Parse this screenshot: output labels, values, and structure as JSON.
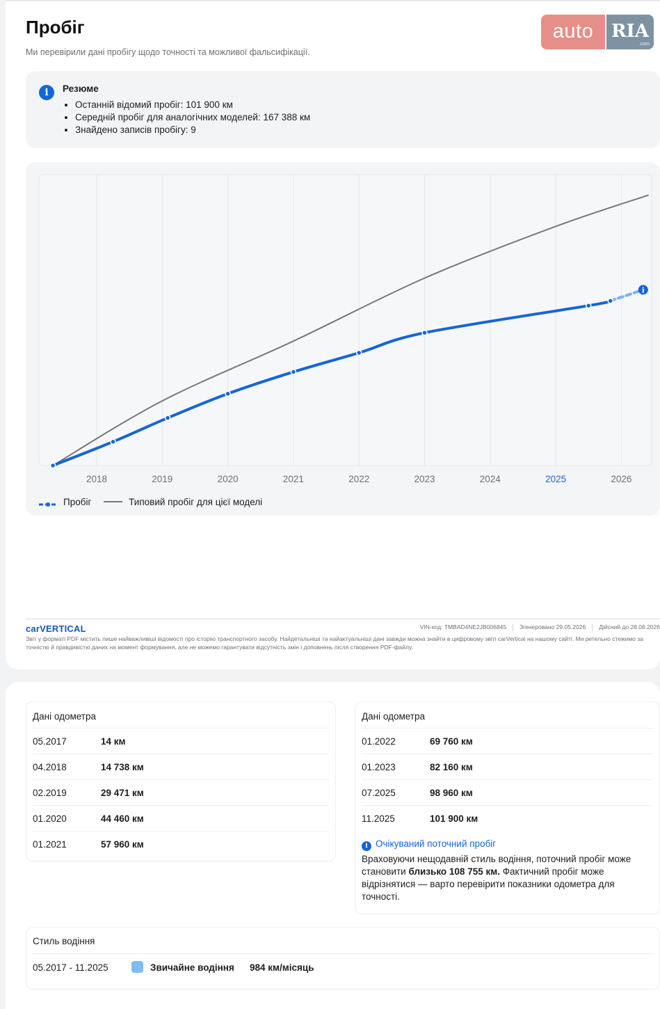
{
  "header": {
    "title": "Пробіг",
    "subtitle": "Ми перевірили дані пробігу щодо точності та можливої фальсифікації.",
    "logo_auto": "auto",
    "logo_ria": "RIA",
    "logo_com": ".com"
  },
  "summary": {
    "title": "Резюме",
    "items": [
      "Останній відомий пробіг: 101 900 км",
      "Середній пробіг для аналогічних моделей: 167 388 км",
      "Знайдено записів пробігу: 9"
    ]
  },
  "chart_data": {
    "type": "line",
    "x_ticks": [
      "2018",
      "2019",
      "2020",
      "2021",
      "2022",
      "2023",
      "2024",
      "2025",
      "2026"
    ],
    "highlight_tick": "2025",
    "series": [
      {
        "name": "Пробіг",
        "color": "#1565d8",
        "points": [
          {
            "x": "05.2017",
            "y": 14
          },
          {
            "x": "04.2018",
            "y": 14738
          },
          {
            "x": "02.2019",
            "y": 29471
          },
          {
            "x": "01.2020",
            "y": 44460
          },
          {
            "x": "01.2021",
            "y": 57960
          },
          {
            "x": "01.2022",
            "y": 69760
          },
          {
            "x": "01.2023",
            "y": 82160
          },
          {
            "x": "07.2025",
            "y": 98960
          },
          {
            "x": "11.2025",
            "y": 101900
          }
        ],
        "projected": {
          "x": "05.2026",
          "y": 108755
        }
      },
      {
        "name": "Типовий пробіг для цієї моделі",
        "color": "#777777",
        "points": [
          {
            "x": "05.2017",
            "y": 0
          },
          {
            "x": "01.2019",
            "y": 40000
          },
          {
            "x": "01.2021",
            "y": 77000
          },
          {
            "x": "01.2023",
            "y": 116000
          },
          {
            "x": "01.2025",
            "y": 148000
          },
          {
            "x": "06.2026",
            "y": 167388
          }
        ]
      }
    ],
    "grid": true,
    "legend": "bottom-left"
  },
  "footer": {
    "brand": "carVERTICAL",
    "vin": "VIN-код: TMBAD4NE2JB006845",
    "generated": "Згенеровано 29.05.2026",
    "valid": "Дійсний до 28.06.2026",
    "disclaimer": "Звіт у форматі PDF містить лише найважливіші відомості про історію транспортного засобу. Найдетальніші та найактуальніші дані завжди можна знайти в цифровому звіті carVertical на нашому сайті. Ми ретельно стежимо за точністю й правдивістю даних на момент формування, але не можемо гарантувати відсутність змін і доповнень після створення PDF-файлу."
  },
  "odometer_left": {
    "title": "Дані одометра",
    "rows": [
      {
        "date": "05.2017",
        "value": "14 км"
      },
      {
        "date": "04.2018",
        "value": "14 738 км"
      },
      {
        "date": "02.2019",
        "value": "29 471 км"
      },
      {
        "date": "01.2020",
        "value": "44 460 км"
      },
      {
        "date": "01.2021",
        "value": "57 960 км"
      }
    ]
  },
  "odometer_right": {
    "title": "Дані одометра",
    "rows": [
      {
        "date": "01.2022",
        "value": "69 760 км"
      },
      {
        "date": "01.2023",
        "value": "82 160 км"
      },
      {
        "date": "07.2025",
        "value": "98 960 км"
      },
      {
        "date": "11.2025",
        "value": "101 900 км"
      }
    ],
    "expected_title": "Очікуваний поточний пробіг",
    "expected_text_1": "Враховуючи нещодавній стиль водіння, поточний пробіг може становити ",
    "expected_text_bold": "близько 108 755 км.",
    "expected_text_2": " Фактичний пробіг може відрізнятися — варто перевірити показники одометра для точності."
  },
  "driving_style": {
    "title": "Стиль водіння",
    "period": "05.2017 - 11.2025",
    "style": "Звичайне водіння",
    "rate": "984 км/місяць",
    "color": "#7fbcf6"
  }
}
